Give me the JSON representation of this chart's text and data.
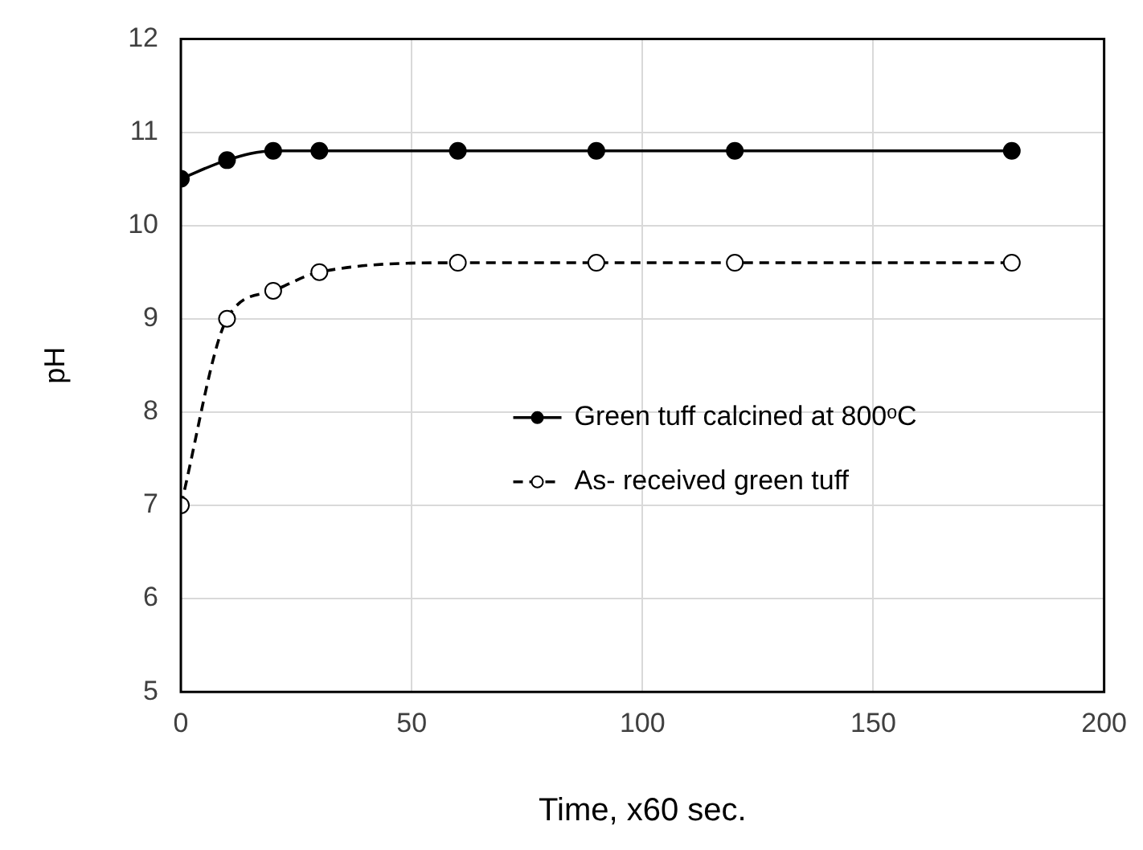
{
  "chart_data": {
    "type": "line",
    "xlabel": "Time, x60 sec.",
    "ylabel": "pH",
    "xlim": [
      0,
      200
    ],
    "xticks": [
      0,
      50,
      100,
      150,
      200
    ],
    "ylim": [
      5,
      12
    ],
    "yticks": [
      5,
      6,
      7,
      8,
      9,
      10,
      11,
      12
    ],
    "grid": true,
    "legend": "right",
    "series": [
      {
        "name": "Green tuff calcined at 800ᵒC",
        "color": "#000000",
        "marker": "circle",
        "line_style": "solid",
        "x": [
          0,
          10,
          20,
          30,
          60,
          90,
          120,
          180
        ],
        "values": [
          10.5,
          10.7,
          10.8,
          10.8,
          10.8,
          10.8,
          10.8,
          10.8
        ]
      },
      {
        "name": "As- received green tuff",
        "color": "#000000",
        "marker": "circle",
        "line_style": "dashed",
        "x": [
          0,
          10,
          20,
          30,
          60,
          90,
          120,
          180
        ],
        "values": [
          7.0,
          9.0,
          9.3,
          9.5,
          9.6,
          9.6,
          9.6,
          9.6
        ]
      }
    ]
  }
}
